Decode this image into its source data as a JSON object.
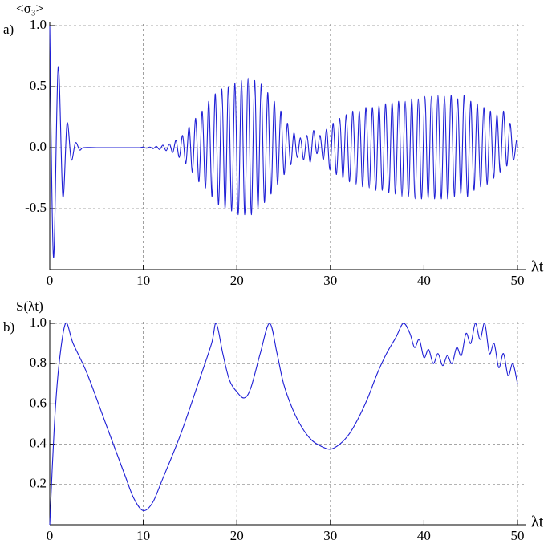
{
  "chart_data": [
    {
      "type": "line",
      "label": "a)",
      "ylabel": "<σ₃>",
      "xlabel": "λt",
      "xlim": [
        0,
        50
      ],
      "ylim": [
        -1,
        1
      ],
      "xticks": [
        0,
        10,
        20,
        30,
        40,
        50
      ],
      "yticks": [
        -0.5,
        {
          "value": 0,
          "label": "0.0"
        },
        0.5,
        {
          "value": 1,
          "label": "1.0"
        }
      ],
      "grid": true,
      "x": [
        0,
        0.4,
        0.9,
        1.4,
        1.85,
        2.3,
        2.75,
        3.2,
        3.6,
        5,
        8,
        9.6,
        10.0,
        10.35,
        10.7,
        11.05,
        11.4,
        11.75,
        12.1,
        12.45,
        12.8,
        13.15,
        13.5,
        13.85,
        14.2,
        14.55,
        14.9,
        15.25,
        15.6,
        15.95,
        16.3,
        16.65,
        17.0,
        17.35,
        17.7,
        18.05,
        18.4,
        18.75,
        19.1,
        19.45,
        19.8,
        20.15,
        20.5,
        20.85,
        21.2,
        21.55,
        21.9,
        22.25,
        22.6,
        22.95,
        23.3,
        23.65,
        24.0,
        24.35,
        24.7,
        25.05,
        25.4,
        25.75,
        26.1,
        26.45,
        26.8,
        27.15,
        27.5,
        27.85,
        28.2,
        28.55,
        28.9,
        29.25,
        29.6,
        29.95,
        30.3,
        30.65,
        31.0,
        31.35,
        31.7,
        32.05,
        32.4,
        32.75,
        33.1,
        33.45,
        33.8,
        34.15,
        34.5,
        34.85,
        35.2,
        35.55,
        35.9,
        36.25,
        36.6,
        36.95,
        37.3,
        37.65,
        38.0,
        38.35,
        38.7,
        39.05,
        39.4,
        39.75,
        40.1,
        40.45,
        40.8,
        41.15,
        41.5,
        41.85,
        42.2,
        42.55,
        42.9,
        43.25,
        43.6,
        43.95,
        44.3,
        44.65,
        45.0,
        45.35,
        45.7,
        46.05,
        46.4,
        46.75,
        47.1,
        47.45,
        47.8,
        48.15,
        48.5,
        48.85,
        49.2,
        49.55,
        49.9,
        50
      ],
      "series": [
        {
          "color": "#1f1fd6",
          "values": [
            1.0,
            -0.9,
            0.66,
            -0.4,
            0.2,
            -0.1,
            0.04,
            -0.02,
            0.0,
            0.0,
            0.0,
            0.0,
            0.005,
            -0.005,
            0.005,
            -0.008,
            0.01,
            -0.015,
            0.02,
            -0.025,
            0.03,
            -0.04,
            0.06,
            -0.08,
            0.1,
            -0.13,
            0.17,
            -0.2,
            0.24,
            -0.28,
            0.3,
            -0.33,
            0.38,
            -0.4,
            0.44,
            -0.47,
            0.48,
            -0.5,
            0.5,
            -0.52,
            0.53,
            -0.55,
            0.55,
            -0.55,
            0.57,
            -0.55,
            0.55,
            -0.5,
            0.52,
            -0.45,
            0.45,
            -0.38,
            0.38,
            -0.3,
            0.3,
            -0.22,
            0.2,
            -0.14,
            0.12,
            -0.08,
            0.08,
            -0.1,
            0.1,
            -0.12,
            0.14,
            -0.05,
            0.1,
            -0.1,
            0.15,
            -0.18,
            0.2,
            -0.22,
            0.24,
            -0.25,
            0.27,
            -0.28,
            0.3,
            -0.3,
            0.3,
            -0.32,
            0.33,
            -0.33,
            0.33,
            -0.35,
            0.35,
            -0.35,
            0.36,
            -0.37,
            0.37,
            -0.38,
            0.38,
            -0.4,
            0.38,
            -0.4,
            0.4,
            -0.42,
            0.4,
            -0.42,
            0.42,
            -0.42,
            0.42,
            -0.42,
            0.43,
            -0.42,
            0.42,
            -0.42,
            0.43,
            -0.4,
            0.4,
            -0.38,
            0.43,
            -0.4,
            0.38,
            -0.35,
            0.36,
            -0.32,
            0.33,
            -0.3,
            0.3,
            -0.25,
            0.27,
            -0.2,
            0.3,
            -0.15,
            0.2,
            -0.1,
            0.06,
            0.0
          ]
        }
      ]
    },
    {
      "type": "line",
      "label": "b)",
      "ylabel": "S(λt)",
      "xlabel": "λt",
      "xlim": [
        0,
        50
      ],
      "ylim": [
        0,
        1
      ],
      "xticks": [
        0,
        10,
        20,
        30,
        40,
        50
      ],
      "yticks": [
        0.2,
        0.4,
        0.6,
        0.8,
        {
          "value": 1,
          "label": "1.0"
        }
      ],
      "grid": true,
      "x": [
        0,
        0.5,
        1,
        1.7,
        2.5,
        4,
        6,
        8,
        9,
        10,
        11,
        12,
        14,
        16,
        17.3,
        17.8,
        18.5,
        19.2,
        20,
        20.8,
        21.5,
        22.5,
        23.5,
        24.3,
        25,
        26,
        27,
        28,
        29,
        30,
        31,
        32,
        33,
        34,
        35,
        36,
        37,
        37.8,
        38.5,
        39,
        39.5,
        40,
        40.5,
        41,
        41.5,
        42,
        42.5,
        43,
        43.5,
        44,
        44.5,
        45,
        45.5,
        46,
        46.5,
        47,
        47.5,
        48,
        48.5,
        49,
        49.5,
        50
      ],
      "series": [
        {
          "color": "#1f1fd6",
          "values": [
            0,
            0.5,
            0.8,
            1.0,
            0.9,
            0.75,
            0.5,
            0.25,
            0.13,
            0.07,
            0.11,
            0.22,
            0.45,
            0.72,
            0.9,
            1.0,
            0.85,
            0.72,
            0.66,
            0.63,
            0.68,
            0.85,
            1.0,
            0.85,
            0.7,
            0.57,
            0.48,
            0.42,
            0.39,
            0.375,
            0.4,
            0.45,
            0.53,
            0.63,
            0.75,
            0.85,
            0.93,
            1.0,
            0.95,
            0.88,
            0.92,
            0.83,
            0.87,
            0.8,
            0.85,
            0.79,
            0.84,
            0.8,
            0.88,
            0.84,
            0.95,
            0.9,
            1.0,
            0.92,
            1.0,
            0.85,
            0.9,
            0.78,
            0.85,
            0.74,
            0.8,
            0.7
          ]
        }
      ]
    }
  ]
}
